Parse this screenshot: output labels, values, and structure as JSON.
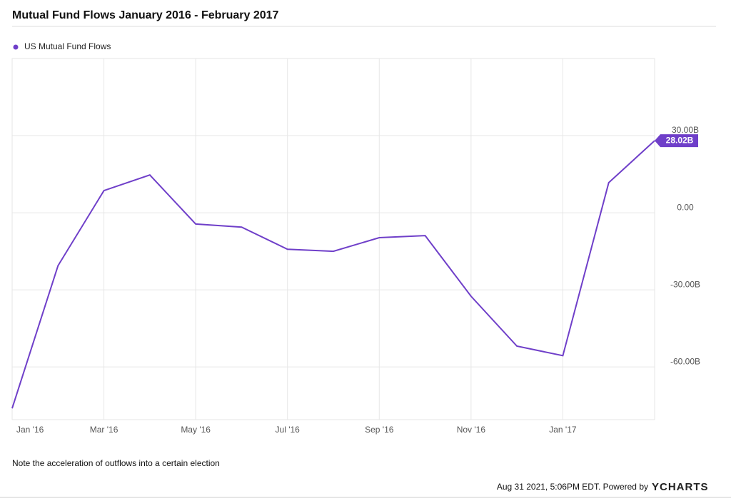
{
  "chart_data": {
    "type": "line",
    "title": "Mutual Fund Flows January 2016 - February 2017",
    "categories": [
      "Jan '16",
      null,
      "Mar '16",
      null,
      "May '16",
      null,
      "Jul '16",
      null,
      "Sep '16",
      null,
      "Nov '16",
      null,
      "Jan '17",
      null,
      null
    ],
    "series": [
      {
        "name": "US Mutual Fund Flows",
        "color": "#6f3fc9",
        "values": [
          -76.1,
          -20.6,
          8.6,
          14.7,
          -4.4,
          -5.6,
          -14.2,
          -15.0,
          -9.7,
          -8.9,
          -32.5,
          -51.9,
          -55.6,
          11.7,
          28.02
        ],
        "value_labels": [
          null,
          null,
          null,
          null,
          null,
          null,
          null,
          null,
          null,
          null,
          null,
          null,
          null,
          null,
          "28.02B"
        ]
      }
    ],
    "ylim": [
      -80.5,
      60
    ],
    "yticks": [
      {
        "value": 30,
        "label": "30.00B"
      },
      {
        "value": 0,
        "label": "0.00"
      },
      {
        "value": -30,
        "label": "-30.00B"
      },
      {
        "value": -60,
        "label": "-60.00B"
      }
    ],
    "grid": true,
    "legend": "top-left",
    "note": "Note the acceleration of outflows into a certain election",
    "footer": "Aug 31 2021, 5:06PM EDT. Powered by",
    "brand": "YCHARTS"
  }
}
